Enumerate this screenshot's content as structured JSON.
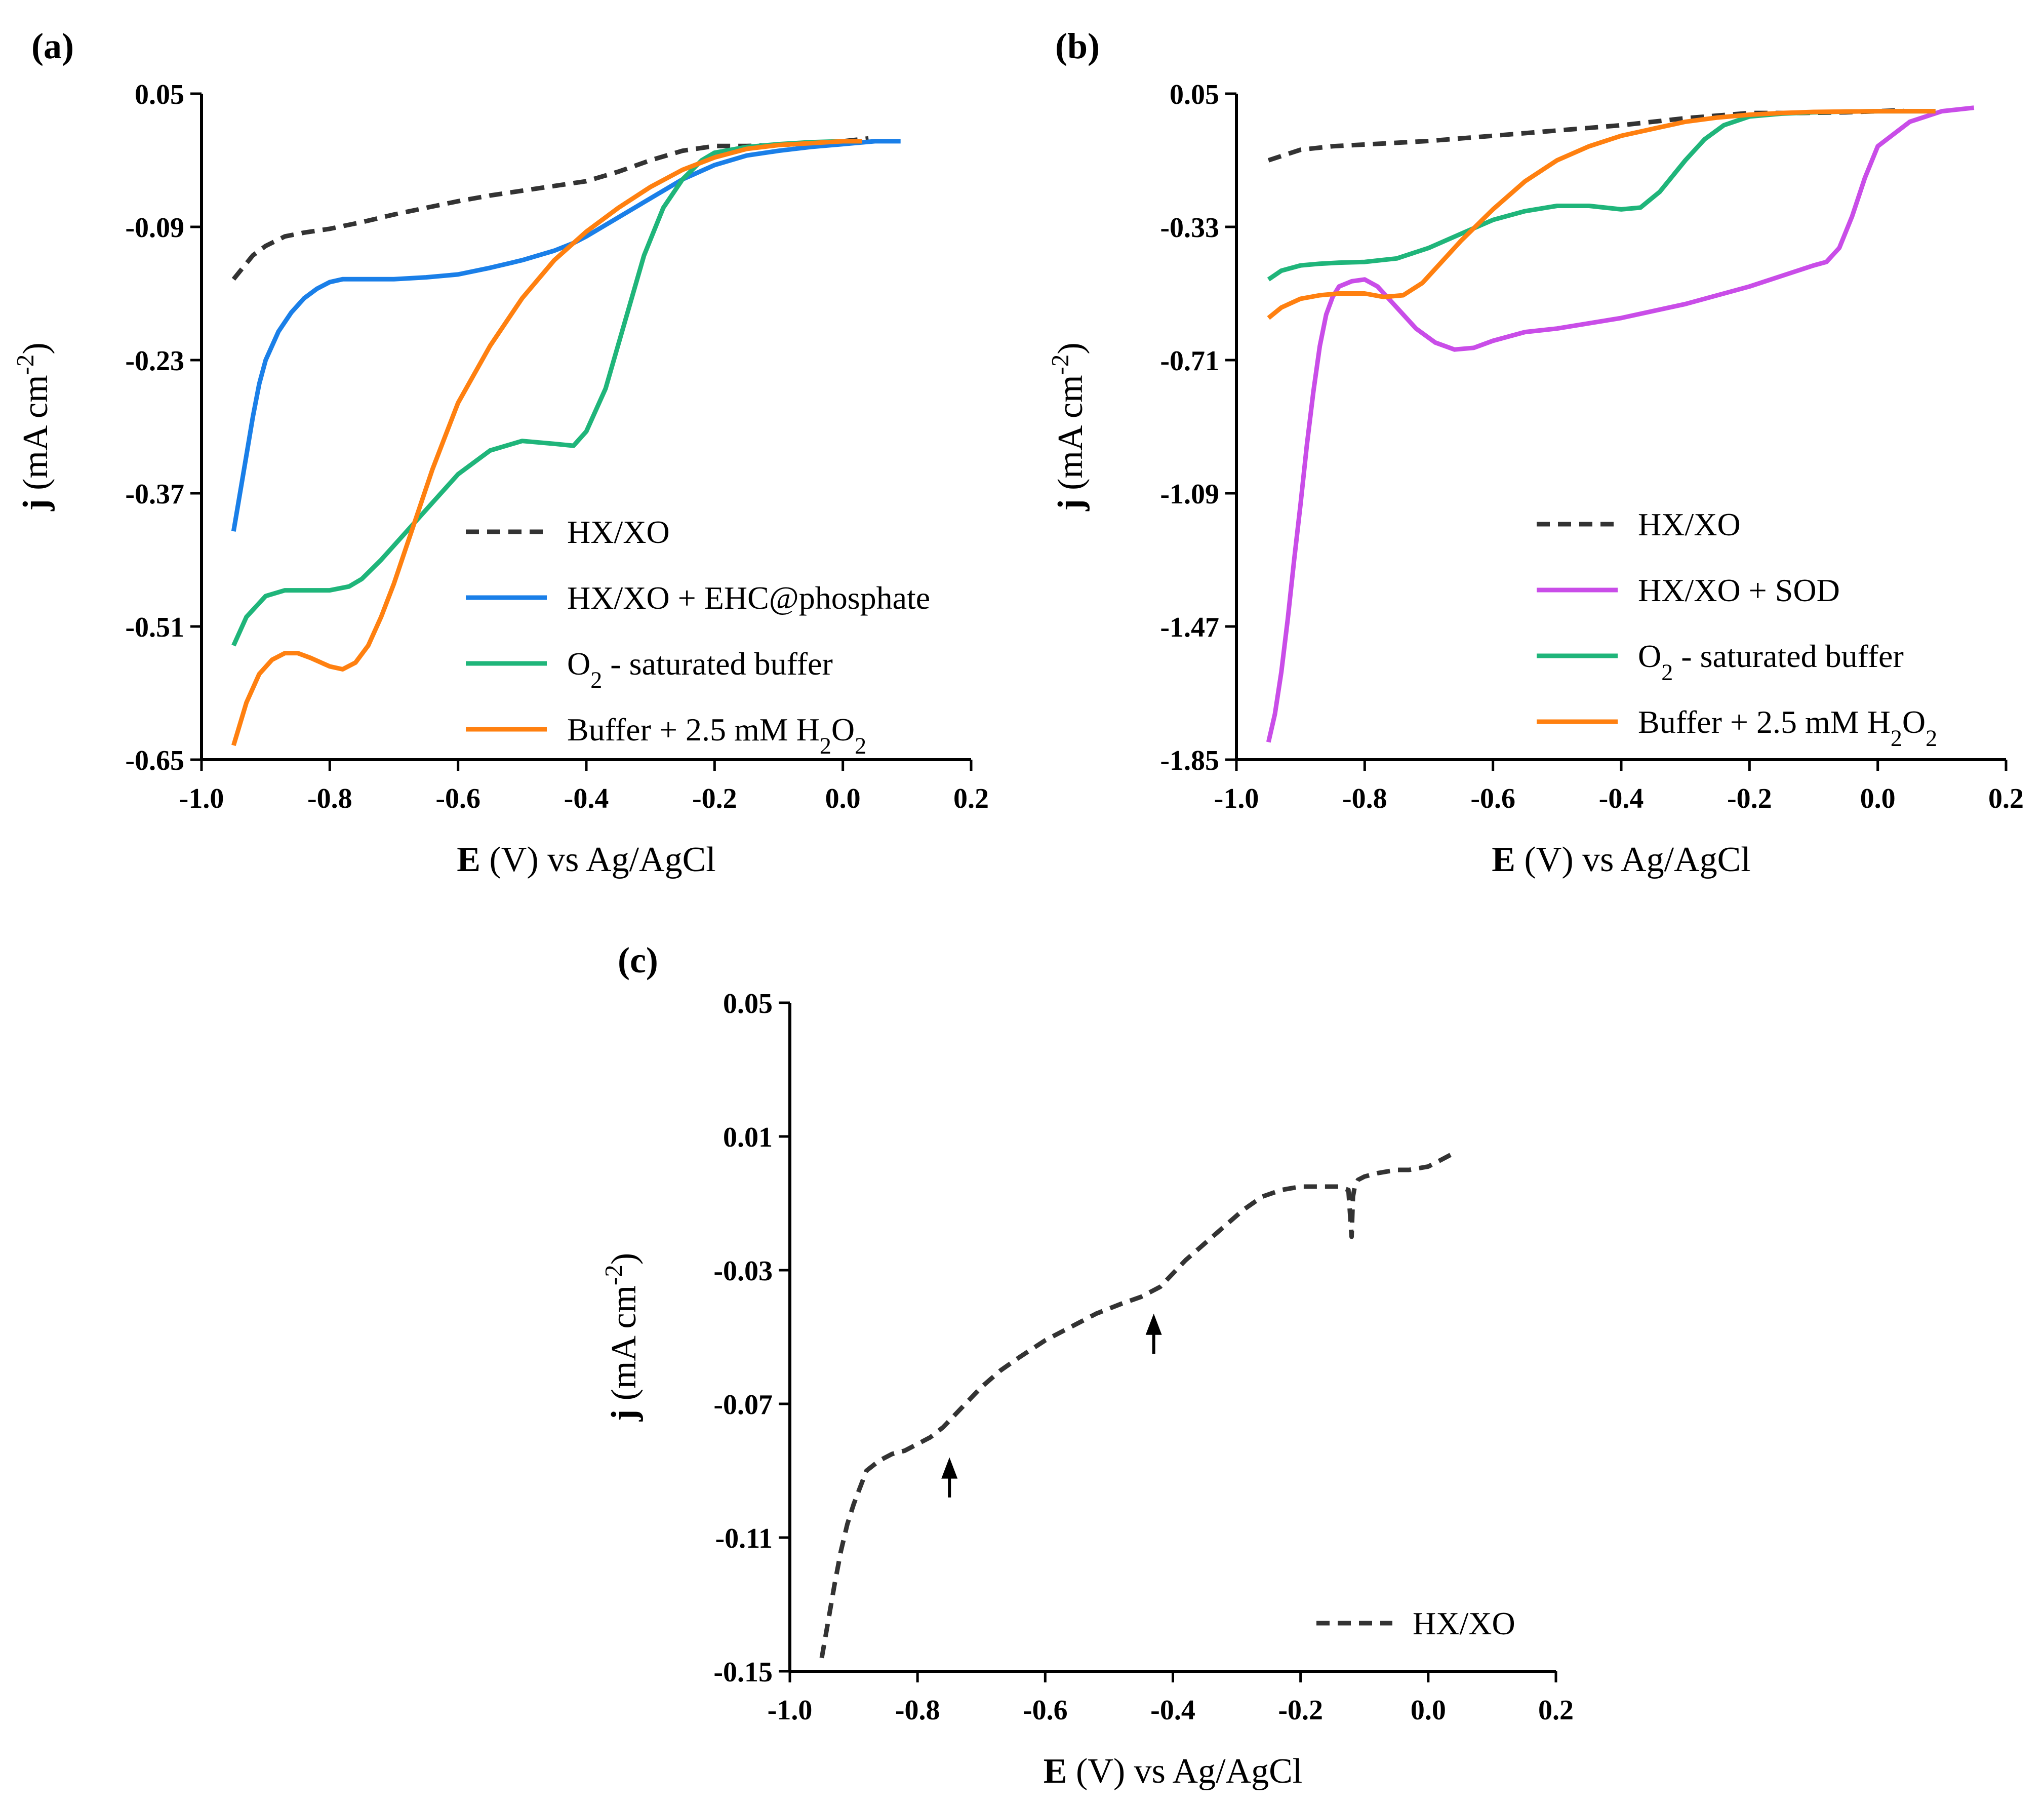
{
  "figure": {
    "colors": {
      "hxxo": "#333333",
      "ehc": "#1a7fe8",
      "o2": "#1fb57a",
      "h2o2": "#ff8010",
      "sod": "#c94de8",
      "axis": "#000000"
    }
  },
  "chart_data": [
    {
      "panel": "(a)",
      "type": "line",
      "title": "",
      "xlabel": "E (V) vs Ag/AgCl",
      "ylabel": "j (mA cm-2)",
      "xlim": [
        -1.0,
        0.2
      ],
      "ylim": [
        -0.65,
        0.05
      ],
      "xticks": [
        -1.0,
        -0.8,
        -0.6,
        -0.4,
        -0.2,
        0.0,
        0.2
      ],
      "xtick_labels": [
        "-1.0",
        "-0.8",
        "-0.6",
        "-0.4",
        "-0.2",
        "0.0",
        "0.2"
      ],
      "yticks": [
        0.05,
        -0.09,
        -0.23,
        -0.37,
        -0.51,
        -0.65
      ],
      "ytick_labels": [
        "0.05",
        "-0.09",
        "-0.23",
        "-0.37",
        "-0.51",
        "-0.65"
      ],
      "legend_position": "bottom-right",
      "series": [
        {
          "name": "HX/XO",
          "color": "#333333",
          "style": "dashed",
          "x": [
            -0.95,
            -0.92,
            -0.9,
            -0.87,
            -0.84,
            -0.8,
            -0.75,
            -0.7,
            -0.65,
            -0.6,
            -0.55,
            -0.5,
            -0.45,
            -0.4,
            -0.35,
            -0.3,
            -0.25,
            -0.2,
            -0.15,
            -0.1,
            -0.05,
            0.0,
            0.04
          ],
          "y": [
            -0.145,
            -0.12,
            -0.11,
            -0.1,
            -0.096,
            -0.092,
            -0.085,
            -0.077,
            -0.07,
            -0.063,
            -0.057,
            -0.052,
            -0.047,
            -0.042,
            -0.032,
            -0.02,
            -0.01,
            -0.005,
            -0.005,
            -0.004,
            -0.002,
            0.0,
            0.003
          ]
        },
        {
          "name": "HX/XO + EHC@phosphate",
          "color": "#1a7fe8",
          "style": "solid",
          "x": [
            -0.95,
            -0.94,
            -0.93,
            -0.92,
            -0.91,
            -0.9,
            -0.88,
            -0.86,
            -0.84,
            -0.82,
            -0.8,
            -0.78,
            -0.75,
            -0.7,
            -0.65,
            -0.6,
            -0.55,
            -0.5,
            -0.45,
            -0.42,
            -0.4,
            -0.35,
            -0.3,
            -0.25,
            -0.2,
            -0.15,
            -0.1,
            -0.05,
            0.0,
            0.05,
            0.09
          ],
          "y": [
            -0.41,
            -0.37,
            -0.33,
            -0.29,
            -0.255,
            -0.23,
            -0.2,
            -0.18,
            -0.165,
            -0.155,
            -0.148,
            -0.145,
            -0.145,
            -0.145,
            -0.143,
            -0.14,
            -0.133,
            -0.125,
            -0.115,
            -0.107,
            -0.1,
            -0.08,
            -0.06,
            -0.04,
            -0.025,
            -0.015,
            -0.01,
            -0.006,
            -0.003,
            0.0,
            0.0
          ]
        },
        {
          "name": "O2 - saturated buffer",
          "color": "#1fb57a",
          "style": "solid",
          "x": [
            -0.95,
            -0.93,
            -0.9,
            -0.87,
            -0.84,
            -0.8,
            -0.77,
            -0.75,
            -0.72,
            -0.68,
            -0.64,
            -0.6,
            -0.55,
            -0.5,
            -0.45,
            -0.42,
            -0.4,
            -0.37,
            -0.34,
            -0.31,
            -0.28,
            -0.25,
            -0.22,
            -0.2,
            -0.15,
            -0.1,
            -0.05,
            0.0,
            0.03
          ],
          "y": [
            -0.53,
            -0.5,
            -0.478,
            -0.472,
            -0.472,
            -0.472,
            -0.468,
            -0.46,
            -0.44,
            -0.41,
            -0.38,
            -0.35,
            -0.325,
            -0.315,
            -0.318,
            -0.32,
            -0.305,
            -0.26,
            -0.19,
            -0.12,
            -0.07,
            -0.04,
            -0.02,
            -0.012,
            -0.006,
            -0.003,
            -0.001,
            0.0,
            0.0
          ]
        },
        {
          "name": "Buffer + 2.5 mM H2O2",
          "color": "#ff8010",
          "style": "solid",
          "x": [
            -0.95,
            -0.93,
            -0.91,
            -0.89,
            -0.87,
            -0.85,
            -0.83,
            -0.8,
            -0.78,
            -0.76,
            -0.74,
            -0.72,
            -0.7,
            -0.68,
            -0.66,
            -0.64,
            -0.62,
            -0.6,
            -0.55,
            -0.5,
            -0.45,
            -0.4,
            -0.35,
            -0.3,
            -0.25,
            -0.2,
            -0.15,
            -0.1,
            -0.05,
            0.0,
            0.03
          ],
          "y": [
            -0.635,
            -0.59,
            -0.56,
            -0.545,
            -0.538,
            -0.538,
            -0.543,
            -0.552,
            -0.555,
            -0.548,
            -0.53,
            -0.5,
            -0.465,
            -0.425,
            -0.385,
            -0.345,
            -0.31,
            -0.275,
            -0.215,
            -0.165,
            -0.125,
            -0.095,
            -0.07,
            -0.048,
            -0.03,
            -0.017,
            -0.008,
            -0.004,
            -0.002,
            0.0,
            0.0
          ]
        }
      ]
    },
    {
      "panel": "(b)",
      "type": "line",
      "title": "",
      "xlabel": "E (V) vs Ag/AgCl",
      "ylabel": "j (mA cm-2)",
      "xlim": [
        -1.0,
        0.2
      ],
      "ylim": [
        -1.85,
        0.05
      ],
      "xticks": [
        -1.0,
        -0.8,
        -0.6,
        -0.4,
        -0.2,
        0.0,
        0.2
      ],
      "xtick_labels": [
        "-1.0",
        "-0.8",
        "-0.6",
        "-0.4",
        "-0.2",
        "0.0",
        "0.2"
      ],
      "yticks": [
        0.05,
        -0.33,
        -0.71,
        -1.09,
        -1.47,
        -1.85
      ],
      "ytick_labels": [
        "0.05",
        "-0.33",
        "-0.71",
        "-1.09",
        "-1.47",
        "-1.85"
      ],
      "legend_position": "bottom-right",
      "series": [
        {
          "name": "HX/XO",
          "color": "#333333",
          "style": "dashed",
          "x": [
            -0.95,
            -0.9,
            -0.85,
            -0.8,
            -0.7,
            -0.6,
            -0.5,
            -0.4,
            -0.3,
            -0.2,
            -0.12,
            -0.05,
            0.0,
            0.04
          ],
          "y": [
            -0.14,
            -0.11,
            -0.1,
            -0.095,
            -0.085,
            -0.07,
            -0.055,
            -0.04,
            -0.02,
            -0.005,
            -0.005,
            -0.003,
            0.0,
            0.003
          ]
        },
        {
          "name": "HX/XO + SOD",
          "color": "#c94de8",
          "style": "solid",
          "x": [
            -0.95,
            -0.94,
            -0.93,
            -0.92,
            -0.91,
            -0.9,
            -0.89,
            -0.88,
            -0.87,
            -0.86,
            -0.85,
            -0.84,
            -0.82,
            -0.8,
            -0.78,
            -0.75,
            -0.72,
            -0.69,
            -0.66,
            -0.63,
            -0.6,
            -0.55,
            -0.5,
            -0.4,
            -0.3,
            -0.2,
            -0.15,
            -0.1,
            -0.08,
            -0.06,
            -0.04,
            -0.02,
            0.0,
            0.05,
            0.1,
            0.15
          ],
          "y": [
            -1.8,
            -1.72,
            -1.6,
            -1.45,
            -1.28,
            -1.12,
            -0.95,
            -0.8,
            -0.67,
            -0.58,
            -0.53,
            -0.5,
            -0.485,
            -0.48,
            -0.5,
            -0.56,
            -0.62,
            -0.66,
            -0.68,
            -0.675,
            -0.655,
            -0.63,
            -0.62,
            -0.59,
            -0.55,
            -0.5,
            -0.47,
            -0.44,
            -0.43,
            -0.39,
            -0.3,
            -0.19,
            -0.1,
            -0.03,
            0.0,
            0.01
          ]
        },
        {
          "name": "O2 - saturated buffer",
          "color": "#1fb57a",
          "style": "solid",
          "x": [
            -0.95,
            -0.93,
            -0.9,
            -0.87,
            -0.84,
            -0.8,
            -0.75,
            -0.7,
            -0.65,
            -0.6,
            -0.55,
            -0.5,
            -0.45,
            -0.4,
            -0.37,
            -0.34,
            -0.3,
            -0.27,
            -0.24,
            -0.2,
            -0.15,
            -0.1,
            -0.05,
            0.0,
            0.05,
            0.09
          ],
          "y": [
            -0.48,
            -0.455,
            -0.44,
            -0.435,
            -0.432,
            -0.43,
            -0.42,
            -0.39,
            -0.35,
            -0.31,
            -0.285,
            -0.27,
            -0.27,
            -0.28,
            -0.275,
            -0.23,
            -0.14,
            -0.08,
            -0.04,
            -0.015,
            -0.007,
            -0.003,
            -0.001,
            0.0,
            0.0,
            0.0
          ]
        },
        {
          "name": "Buffer + 2.5 mM H2O2",
          "color": "#ff8010",
          "style": "solid",
          "x": [
            -0.95,
            -0.93,
            -0.9,
            -0.87,
            -0.84,
            -0.8,
            -0.77,
            -0.74,
            -0.71,
            -0.68,
            -0.65,
            -0.6,
            -0.55,
            -0.5,
            -0.45,
            -0.4,
            -0.35,
            -0.3,
            -0.25,
            -0.2,
            -0.15,
            -0.1,
            -0.05,
            0.0,
            0.05,
            0.09
          ],
          "y": [
            -0.59,
            -0.56,
            -0.535,
            -0.525,
            -0.52,
            -0.52,
            -0.53,
            -0.525,
            -0.49,
            -0.43,
            -0.37,
            -0.28,
            -0.2,
            -0.14,
            -0.1,
            -0.07,
            -0.05,
            -0.03,
            -0.018,
            -0.01,
            -0.005,
            -0.002,
            -0.001,
            0.0,
            0.0,
            0.0
          ]
        }
      ]
    },
    {
      "panel": "(c)",
      "type": "line",
      "title": "",
      "xlabel": "E (V) vs Ag/AgCl",
      "ylabel": "j (mA cm-2)",
      "xlim": [
        -1.0,
        0.2
      ],
      "ylim": [
        -0.15,
        0.05
      ],
      "xticks": [
        -1.0,
        -0.8,
        -0.6,
        -0.4,
        -0.2,
        0.0,
        0.2
      ],
      "xtick_labels": [
        "-1.0",
        "-0.8",
        "-0.6",
        "-0.4",
        "-0.2",
        "0.0",
        "0.2"
      ],
      "yticks": [
        0.05,
        0.01,
        -0.03,
        -0.07,
        -0.11,
        -0.15
      ],
      "ytick_labels": [
        "0.05",
        "0.01",
        "-0.03",
        "-0.07",
        "-0.11",
        "-0.15"
      ],
      "legend_position": "bottom-right",
      "annotations": [
        {
          "type": "arrow",
          "x": -0.75,
          "y_tip": -0.086,
          "y_tail": -0.098
        },
        {
          "type": "arrow",
          "x": -0.43,
          "y_tip": -0.043,
          "y_tail": -0.055
        }
      ],
      "series": [
        {
          "name": "HX/XO",
          "color": "#333333",
          "style": "dashed",
          "x": [
            -0.95,
            -0.94,
            -0.93,
            -0.92,
            -0.91,
            -0.9,
            -0.89,
            -0.88,
            -0.86,
            -0.84,
            -0.82,
            -0.8,
            -0.78,
            -0.76,
            -0.74,
            -0.72,
            -0.7,
            -0.67,
            -0.64,
            -0.6,
            -0.56,
            -0.52,
            -0.48,
            -0.45,
            -0.42,
            -0.4,
            -0.38,
            -0.35,
            -0.32,
            -0.29,
            -0.26,
            -0.23,
            -0.2,
            -0.18,
            -0.16,
            -0.14,
            -0.125,
            -0.12,
            -0.118,
            -0.115,
            -0.11,
            -0.1,
            -0.08,
            -0.05,
            -0.03,
            0.0,
            0.02,
            0.04
          ],
          "y": [
            -0.146,
            -0.135,
            -0.124,
            -0.114,
            -0.106,
            -0.1,
            -0.095,
            -0.09,
            -0.087,
            -0.085,
            -0.084,
            -0.082,
            -0.08,
            -0.077,
            -0.073,
            -0.069,
            -0.065,
            -0.06,
            -0.056,
            -0.051,
            -0.047,
            -0.043,
            -0.04,
            -0.038,
            -0.035,
            -0.031,
            -0.027,
            -0.022,
            -0.017,
            -0.012,
            -0.008,
            -0.006,
            -0.005,
            -0.005,
            -0.005,
            -0.005,
            -0.006,
            -0.02,
            -0.008,
            -0.005,
            -0.003,
            -0.002,
            -0.001,
            0.0,
            0.0,
            0.001,
            0.003,
            0.005
          ]
        }
      ]
    }
  ],
  "legends": {
    "a": {
      "items": [
        {
          "label": "HX/XO",
          "color": "#333333",
          "style": "dashed"
        },
        {
          "label": "HX/XO + EHC@phosphate",
          "color": "#1a7fe8",
          "style": "solid"
        },
        {
          "label": "O2 - saturated buffer",
          "color": "#1fb57a",
          "style": "solid"
        },
        {
          "label": "Buffer + 2.5 mM H2O2",
          "color": "#ff8010",
          "style": "solid"
        }
      ]
    },
    "b": {
      "items": [
        {
          "label": "HX/XO",
          "color": "#333333",
          "style": "dashed"
        },
        {
          "label": "HX/XO + SOD",
          "color": "#c94de8",
          "style": "solid"
        },
        {
          "label": "O2 - saturated buffer",
          "color": "#1fb57a",
          "style": "solid"
        },
        {
          "label": "Buffer + 2.5 mM H2O2",
          "color": "#ff8010",
          "style": "solid"
        }
      ]
    },
    "c": {
      "items": [
        {
          "label": "HX/XO",
          "color": "#333333",
          "style": "dashed"
        }
      ]
    }
  }
}
